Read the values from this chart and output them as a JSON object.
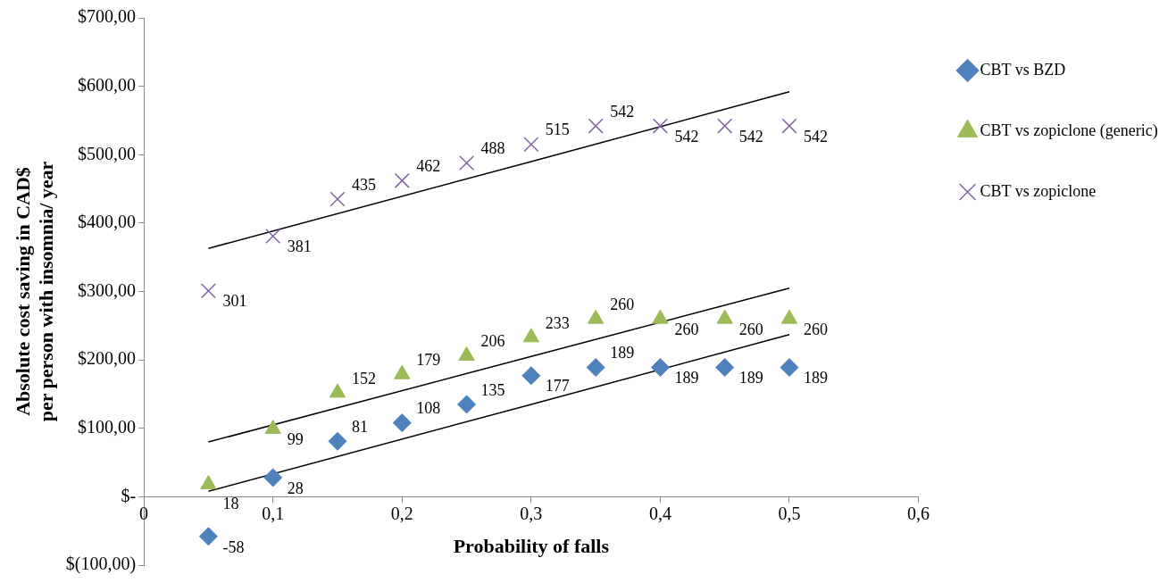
{
  "chart_data": {
    "type": "scatter",
    "xlabel": "Probability of falls",
    "ylabel": "Absolute cost saving in CAD$\nper person with insomnia/ year",
    "xlim": [
      0,
      0.6
    ],
    "xticks": [
      0,
      {
        "value": 0.1,
        "label": "0,1"
      },
      {
        "value": 0.2,
        "label": "0,2"
      },
      {
        "value": 0.3,
        "label": "0,3"
      },
      {
        "value": 0.4,
        "label": "0,4"
      },
      {
        "value": 0.5,
        "label": "0,5"
      },
      {
        "value": 0.6,
        "label": "0,6"
      }
    ],
    "ylim": [
      -100,
      700
    ],
    "yticks": [
      {
        "value": -100,
        "label": "$(100,00)"
      },
      {
        "value": 0,
        "label": "$-"
      },
      {
        "value": 100,
        "label": "$100,00"
      },
      {
        "value": 200,
        "label": "$200,00"
      },
      {
        "value": 300,
        "label": "$300,00"
      },
      {
        "value": 400,
        "label": "$400,00"
      },
      {
        "value": 500,
        "label": "$500,00"
      },
      {
        "value": 600,
        "label": "$600,00"
      },
      {
        "value": 700,
        "label": "$700,00"
      }
    ],
    "grid": false,
    "legend": "top right",
    "x": [
      0.05,
      0.1,
      0.15,
      0.2,
      0.25,
      0.3,
      0.35,
      0.4,
      0.45,
      0.5
    ],
    "series": [
      {
        "name": "CBT vs BZD",
        "color": "#4f81bd",
        "marker": "diamond",
        "values": [
          -58,
          28,
          81,
          108,
          135,
          177,
          189,
          189,
          189,
          189
        ],
        "value_labels": [
          "-58",
          "28",
          "81",
          "108",
          "135",
          "177",
          "189",
          "189",
          "189",
          "189"
        ]
      },
      {
        "name": "CBT vs zopiclone (generic)",
        "color": "#9bbb59",
        "marker": "triangle",
        "values": [
          18,
          99,
          152,
          179,
          206,
          233,
          260,
          260,
          260,
          260
        ],
        "value_labels": [
          "18",
          "99",
          "152",
          "179",
          "206",
          "233",
          "260",
          "260",
          "260",
          "260"
        ]
      },
      {
        "name": "CBT vs zopiclone",
        "color": "#8064a2",
        "marker": "cross",
        "values": [
          301,
          381,
          435,
          462,
          488,
          515,
          542,
          542,
          542,
          542
        ],
        "value_labels": [
          "301",
          "381",
          "435",
          "462",
          "488",
          "515",
          "542",
          "542",
          "542",
          "542"
        ]
      },
      {
        "type": "line",
        "color": "#000000",
        "x": [
          0.05,
          0.3,
          0.5
        ],
        "values": [
          8,
          135,
          237
        ]
      },
      {
        "type": "line",
        "color": "#000000",
        "x": [
          0.05,
          0.3,
          0.5
        ],
        "values": [
          80,
          205,
          305
        ]
      },
      {
        "type": "line",
        "color": "#000000",
        "x": [
          0.05,
          0.3,
          0.5
        ],
        "values": [
          363,
          490,
          592
        ]
      }
    ]
  }
}
